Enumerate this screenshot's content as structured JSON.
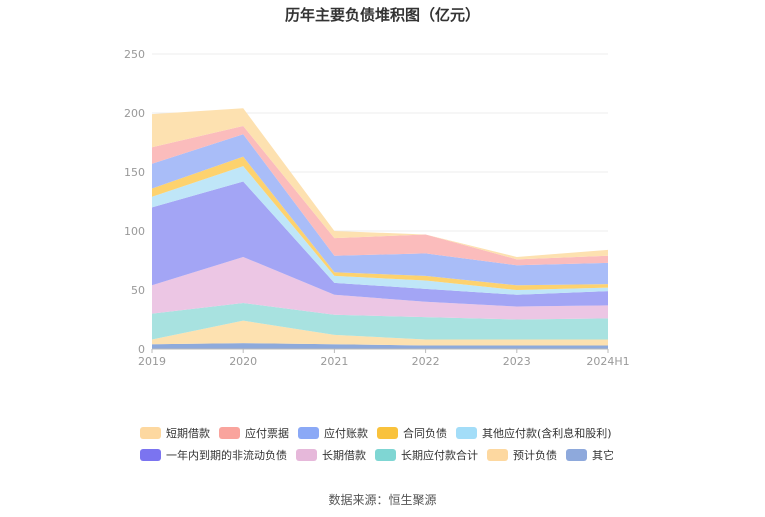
{
  "chart_data": {
    "type": "area",
    "stacked": true,
    "title": "历年主要负债堆积图（亿元）",
    "categories": [
      "2019",
      "2020",
      "2021",
      "2022",
      "2023",
      "2024H1"
    ],
    "y_ticks": [
      0,
      50,
      100,
      150,
      200,
      250
    ],
    "ylim": [
      0,
      250
    ],
    "grid": true,
    "series": [
      {
        "name": "其它",
        "color": "#8eaadb",
        "values": [
          4,
          5,
          4,
          3,
          3,
          3
        ]
      },
      {
        "name": "预计负债",
        "color": "#fde1b0",
        "values": [
          4,
          19,
          8,
          5,
          5,
          5
        ]
      },
      {
        "name": "长期应付款合计",
        "color": "#a8e2e0",
        "values": [
          22,
          15,
          17,
          19,
          17,
          18
        ]
      },
      {
        "name": "长期借款",
        "color": "#ecc6e4",
        "values": [
          24,
          39,
          17,
          13,
          11,
          11
        ]
      },
      {
        "name": "一年内到期的非流动负债",
        "color": "#a3a5f5",
        "values": [
          66,
          64,
          10,
          11,
          10,
          12
        ]
      },
      {
        "name": "其他应付款(含利息和股利)",
        "color": "#bfe6f8",
        "values": [
          9,
          13,
          6,
          7,
          4,
          3
        ]
      },
      {
        "name": "合同负债",
        "color": "#fdd26e",
        "values": [
          7,
          8,
          3,
          4,
          4,
          3
        ]
      },
      {
        "name": "应付账款",
        "color": "#a9bdf8",
        "values": [
          21,
          19,
          14,
          19,
          17,
          18
        ]
      },
      {
        "name": "应付票据",
        "color": "#fbbcbc",
        "values": [
          14,
          7,
          15,
          16,
          5,
          6
        ]
      },
      {
        "name": "短期借款",
        "color": "#fde1b0",
        "values": [
          28,
          15,
          6,
          0,
          2,
          5
        ]
      }
    ],
    "legend": [
      {
        "name": "短期借款",
        "color": "#fdd8a0"
      },
      {
        "name": "应付票据",
        "color": "#f9a49d"
      },
      {
        "name": "应付账款",
        "color": "#8ba9f6"
      },
      {
        "name": "合同负债",
        "color": "#f9c23c"
      },
      {
        "name": "其他应付款(含利息和股利)",
        "color": "#a3ddf8"
      },
      {
        "name": "一年内到期的非流动负债",
        "color": "#7b74f0"
      },
      {
        "name": "长期借款",
        "color": "#e6b8da"
      },
      {
        "name": "长期应付款合计",
        "color": "#7fd6d3"
      },
      {
        "name": "预计负债",
        "color": "#fdd8a0"
      },
      {
        "name": "其它",
        "color": "#8ea9dc"
      }
    ],
    "source": "数据来源：恒生聚源"
  }
}
